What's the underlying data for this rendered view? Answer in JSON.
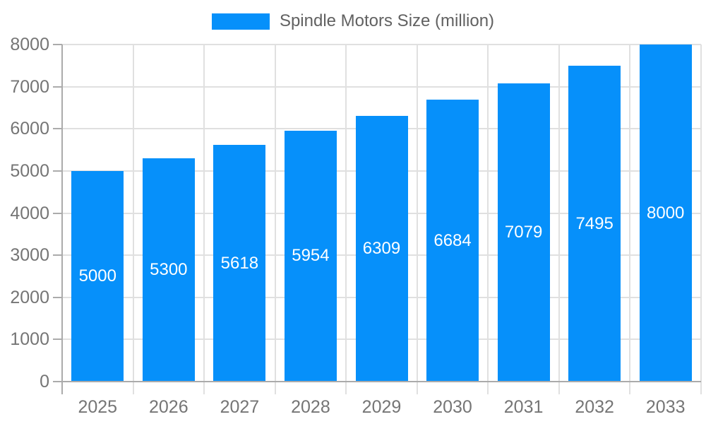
{
  "chart_data": {
    "type": "bar",
    "title": "Spindle Motors Size (million)",
    "legend": {
      "label": "Spindle Motors Size (million)",
      "position": "top"
    },
    "categories": [
      "2025",
      "2026",
      "2027",
      "2028",
      "2029",
      "2030",
      "2031",
      "2032",
      "2033"
    ],
    "values": [
      5000,
      5300,
      5618,
      5954,
      6309,
      6684,
      7079,
      7495,
      8000
    ],
    "xlabel": "",
    "ylabel": "",
    "ylim": [
      0,
      8000
    ],
    "ytick_step": 1000,
    "ytick_labels": [
      "0",
      "1000",
      "2000",
      "3000",
      "4000",
      "5000",
      "6000",
      "7000",
      "8000"
    ],
    "grid": true,
    "colors": {
      "bar": "#0690fa",
      "bar_label": "#ffffff",
      "axis_text": "#757575",
      "legend_text": "#616161",
      "grid_line": "#e0e0e0",
      "axis_line": "#ababab"
    }
  }
}
